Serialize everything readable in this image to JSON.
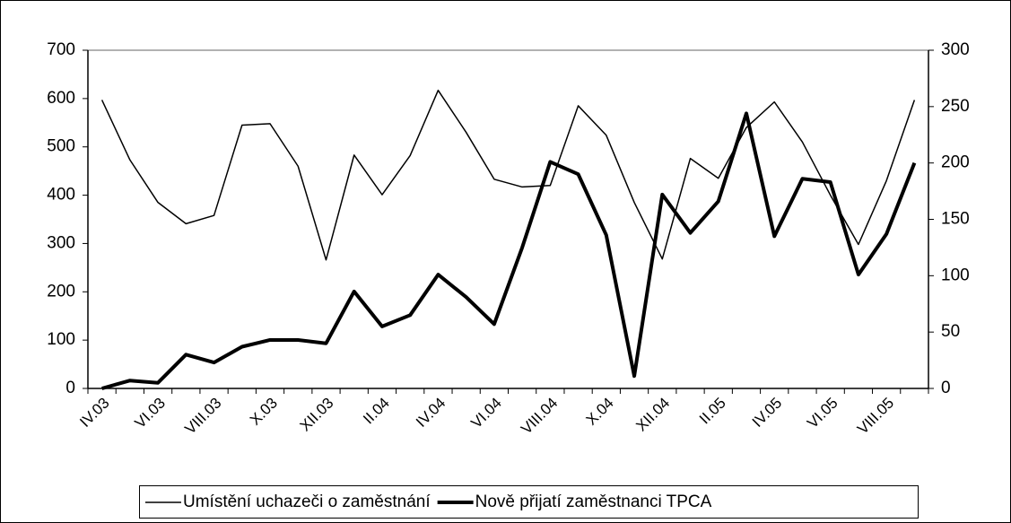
{
  "chart_data": {
    "type": "line",
    "categories": [
      "IV.03",
      null,
      "VI.03",
      null,
      "VIII.03",
      null,
      "X.03",
      null,
      "XII.03",
      null,
      "II.04",
      null,
      "IV.04",
      null,
      "VI.04",
      null,
      "VIII.04",
      null,
      "X.04",
      null,
      "XII.04",
      null,
      "II.05",
      null,
      "IV.05",
      null,
      "VI.05",
      null,
      "VIII.05",
      null
    ],
    "series": [
      {
        "name": "Umístění uchazeči o zaměstnání",
        "color": "#000000",
        "width": 1.5,
        "values": [
          597,
          473,
          385,
          341,
          358,
          545,
          548,
          460,
          266,
          483,
          401,
          482,
          617,
          530,
          433,
          417,
          420,
          585,
          524,
          385,
          268,
          476,
          435,
          540,
          593,
          510,
          400,
          298,
          430,
          597
        ]
      },
      {
        "name": "Nově přijatí zaměstnanci TPCA",
        "color": "#000000",
        "width": 4,
        "axis": "y2",
        "values": [
          0,
          7,
          5,
          30,
          23,
          37,
          43,
          43,
          40,
          86,
          55,
          65,
          101,
          81,
          57,
          125,
          201,
          190,
          136,
          11,
          172,
          138,
          166,
          244,
          135,
          186,
          183,
          101,
          137,
          200
        ]
      }
    ],
    "ylim": [
      0,
      700
    ],
    "yticks": [
      0,
      100,
      200,
      300,
      400,
      500,
      600,
      700
    ],
    "y2lim": [
      0,
      300
    ],
    "y2ticks": [
      0,
      50,
      100,
      150,
      200,
      250,
      300
    ],
    "legend": "bottom"
  }
}
